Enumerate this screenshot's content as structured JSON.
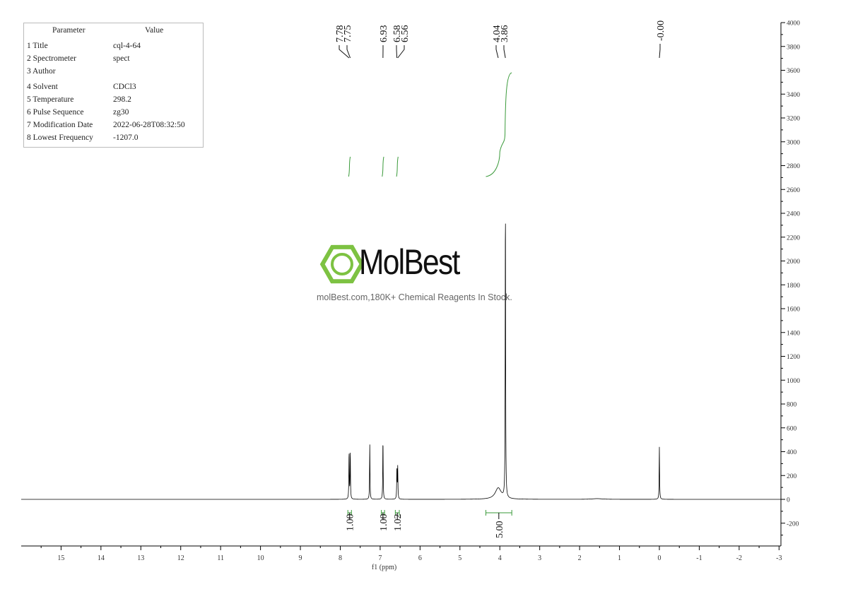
{
  "params": {
    "header": [
      "Parameter",
      "Value"
    ],
    "rows": [
      [
        "1 Title",
        "cql-4-64"
      ],
      [
        "2 Spectrometer",
        "spect"
      ],
      [
        "3 Author",
        ""
      ],
      [
        "4 Solvent",
        "CDCl3"
      ],
      [
        "5 Temperature",
        "298.2"
      ],
      [
        "6 Pulse Sequence",
        "zg30"
      ],
      [
        "7 Modification Date",
        "2022-06-28T08:32:50"
      ],
      [
        "8 Lowest Frequency",
        "-1207.0"
      ]
    ]
  },
  "watermark": {
    "brand": "MolBest",
    "tagline": "molBest.com,180K+ Chemical Reagents In Stock.",
    "icon": "benzene-hexagon-icon",
    "color": "#7dc242"
  },
  "chart_data": {
    "type": "line",
    "xlabel": "f1 (ppm)",
    "xlim": [
      16.0,
      -3.0
    ],
    "ylim": [
      -380,
      4000
    ],
    "xticks": [
      15,
      14,
      13,
      12,
      11,
      10,
      9,
      8,
      7,
      6,
      5,
      4,
      3,
      2,
      1,
      0,
      -1,
      -2,
      -3
    ],
    "yticks": [
      -200,
      0,
      200,
      400,
      600,
      800,
      1000,
      1200,
      1400,
      1600,
      1800,
      2000,
      2200,
      2400,
      2600,
      2800,
      3000,
      3200,
      3400,
      3600,
      3800,
      4000
    ],
    "peaks": [
      {
        "ppm": 7.78,
        "height": 400,
        "width": 0.006
      },
      {
        "ppm": 7.75,
        "height": 400,
        "width": 0.006
      },
      {
        "ppm": 7.26,
        "height": 460,
        "width": 0.006
      },
      {
        "ppm": 6.93,
        "height": 510,
        "width": 0.006
      },
      {
        "ppm": 6.58,
        "height": 265,
        "width": 0.006
      },
      {
        "ppm": 6.56,
        "height": 265,
        "width": 0.006
      },
      {
        "ppm": 4.04,
        "height": 95,
        "width": 0.09
      },
      {
        "ppm": 3.86,
        "height": 2530,
        "width": 0.006
      },
      {
        "ppm": 1.56,
        "height": 6,
        "width": 0.15
      },
      {
        "ppm": 0.0,
        "height": 440,
        "width": 0.006
      }
    ],
    "peak_labels": [
      {
        "group": [
          "7.78",
          "7.75"
        ],
        "ppm": [
          7.78,
          7.75
        ]
      },
      {
        "group": [
          "6.93"
        ],
        "ppm": [
          6.93
        ]
      },
      {
        "group": [
          "6.58",
          "6.56"
        ],
        "ppm": [
          6.58,
          6.56
        ]
      },
      {
        "group": [
          "4.04",
          "3.86"
        ],
        "ppm": [
          4.04,
          3.86
        ]
      },
      {
        "group": [
          "-0.00"
        ],
        "ppm": [
          0.0
        ]
      }
    ],
    "integrals": [
      {
        "from": 7.81,
        "to": 7.72,
        "value": "1.00"
      },
      {
        "from": 6.97,
        "to": 6.89,
        "value": "1.00"
      },
      {
        "from": 6.62,
        "to": 6.52,
        "value": "1.02"
      },
      {
        "from": 4.35,
        "to": 3.7,
        "value": "5.00"
      }
    ],
    "colors": {
      "spectrum": "#000000",
      "integral": "#3a9a3a"
    }
  }
}
